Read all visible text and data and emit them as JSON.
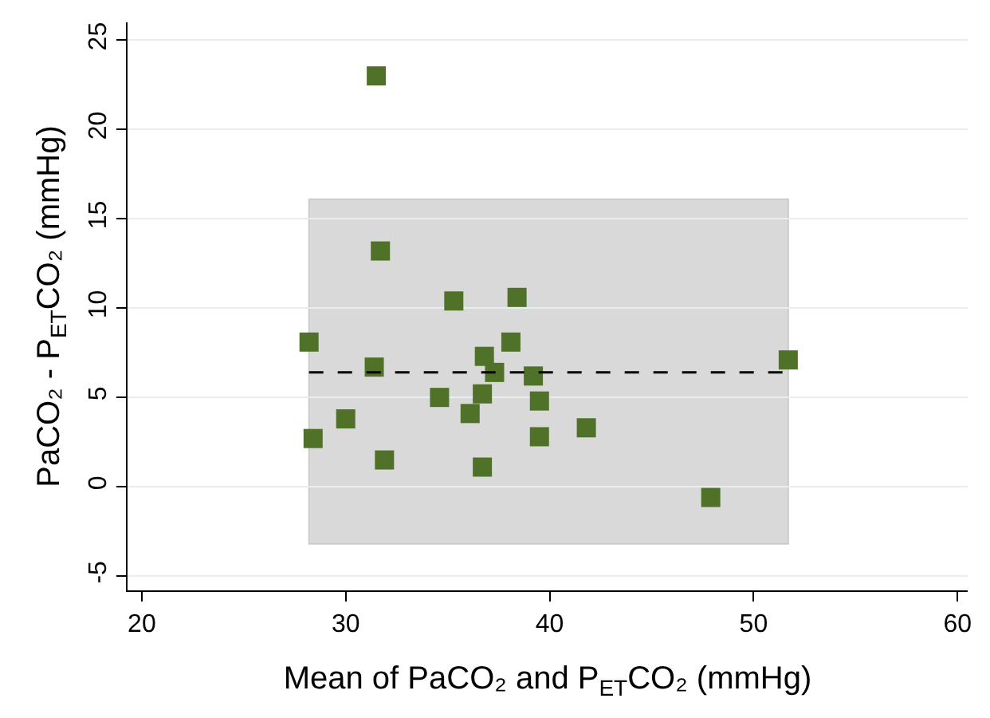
{
  "chart_data": {
    "type": "scatter",
    "xlabel": "Mean of PaCO₂ and P$_{ET}$CO₂ (mmHg)",
    "ylabel": "PaCO₂ - P$_{ET}$CO₂ (mmHg)",
    "x": [
      31.5,
      31.7,
      28.2,
      35.3,
      38.4,
      38.1,
      36.8,
      37.3,
      31.4,
      39.2,
      39.5,
      36.7,
      34.6,
      36.1,
      30.0,
      28.4,
      39.5,
      41.8,
      31.9,
      36.7,
      47.9,
      51.7
    ],
    "values": [
      23.0,
      13.2,
      8.1,
      10.4,
      10.6,
      8.1,
      7.3,
      6.4,
      6.7,
      6.2,
      4.8,
      5.2,
      5.0,
      4.1,
      3.8,
      2.7,
      2.8,
      3.3,
      1.5,
      1.1,
      -0.6,
      7.1
    ],
    "color": "#4f7228",
    "marker": "square",
    "xlim": [
      19.3,
      60.5
    ],
    "xticks": [
      20,
      30,
      40,
      50,
      60
    ],
    "ylim": [
      -5.8,
      26
    ],
    "yticks": [
      -5,
      0,
      5,
      10,
      15,
      20,
      25
    ],
    "grid": "y",
    "ref_lines": [
      {
        "axis": "y",
        "value": 6.4,
        "color": "#000000",
        "line_style": "dashed"
      }
    ],
    "bands": [
      {
        "axis": "y",
        "from": -3.2,
        "to": 16.1,
        "color": "#d9d9d9"
      }
    ]
  }
}
